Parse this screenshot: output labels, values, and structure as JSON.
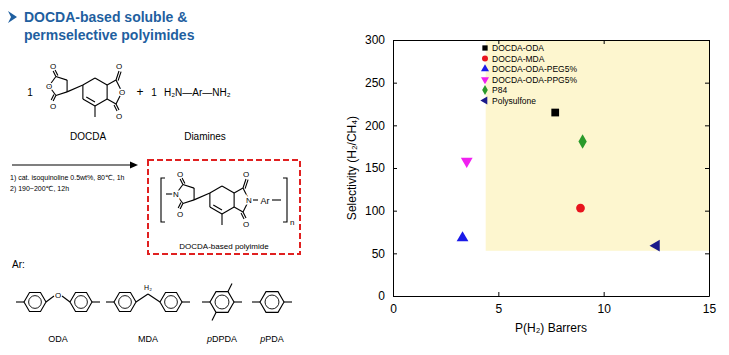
{
  "slide": {
    "title_lines": [
      "DOCDA-based soluble &",
      "permselective polyimides"
    ],
    "scheme": {
      "coefficients": [
        1,
        1
      ],
      "monomer": "DOCDA",
      "plus": "+",
      "diamine_formula": "H₂N—Ar—NH₂",
      "diamine": "Diamines",
      "conditions": [
        "1)  cat. isoquinoline 0.5wt%, 80℃, 1h",
        "2)  190~200℃, 12h"
      ],
      "product": "DOCDA-based polyimide",
      "repeat": "n",
      "oxygen": "O",
      "nitrogen": "N",
      "ar": "Ar",
      "ar_label": "Ar:",
      "ar_groups": [
        "ODA",
        "MDA",
        "pDPDA",
        "pPDA"
      ],
      "methylene_h": "H₂"
    }
  },
  "chart_data": {
    "type": "scatter",
    "xlabel": "P(H₂) Barrers",
    "ylabel": "Selectivity (H₂/CH₄)",
    "xlim": [
      0,
      15
    ],
    "ylim": [
      0,
      300
    ],
    "xticks": [
      0,
      5,
      10,
      15
    ],
    "yticks": [
      0,
      50,
      100,
      150,
      200,
      250,
      300
    ],
    "legend": "upper left",
    "shaded_region": {
      "x": [
        4.4,
        15
      ],
      "y": [
        53,
        300
      ],
      "color": "#fdf6cf"
    },
    "series": [
      {
        "name": "DOCDA-ODA",
        "color": "#000000",
        "marker": "square",
        "x": [
          7.7
        ],
        "values": [
          215
        ]
      },
      {
        "name": "DOCDA-MDA",
        "color": "#e8141e",
        "marker": "circle",
        "x": [
          8.9
        ],
        "values": [
          103
        ]
      },
      {
        "name": "DOCDA-ODA-PEG5%",
        "color": "#1a1ae8",
        "marker": "triangle-up",
        "x": [
          3.3
        ],
        "values": [
          68
        ]
      },
      {
        "name": "DOCDA-ODA-PPG5%",
        "color": "#f020f0",
        "marker": "triangle-down",
        "x": [
          3.5
        ],
        "values": [
          158
        ]
      },
      {
        "name": "P84",
        "color": "#2a9a2a",
        "marker": "diamond",
        "x": [
          9.0
        ],
        "values": [
          181
        ]
      },
      {
        "name": "Polysulfone",
        "color": "#1a1a8a",
        "marker": "triangle-left",
        "x": [
          12.5
        ],
        "values": [
          59
        ]
      }
    ]
  }
}
